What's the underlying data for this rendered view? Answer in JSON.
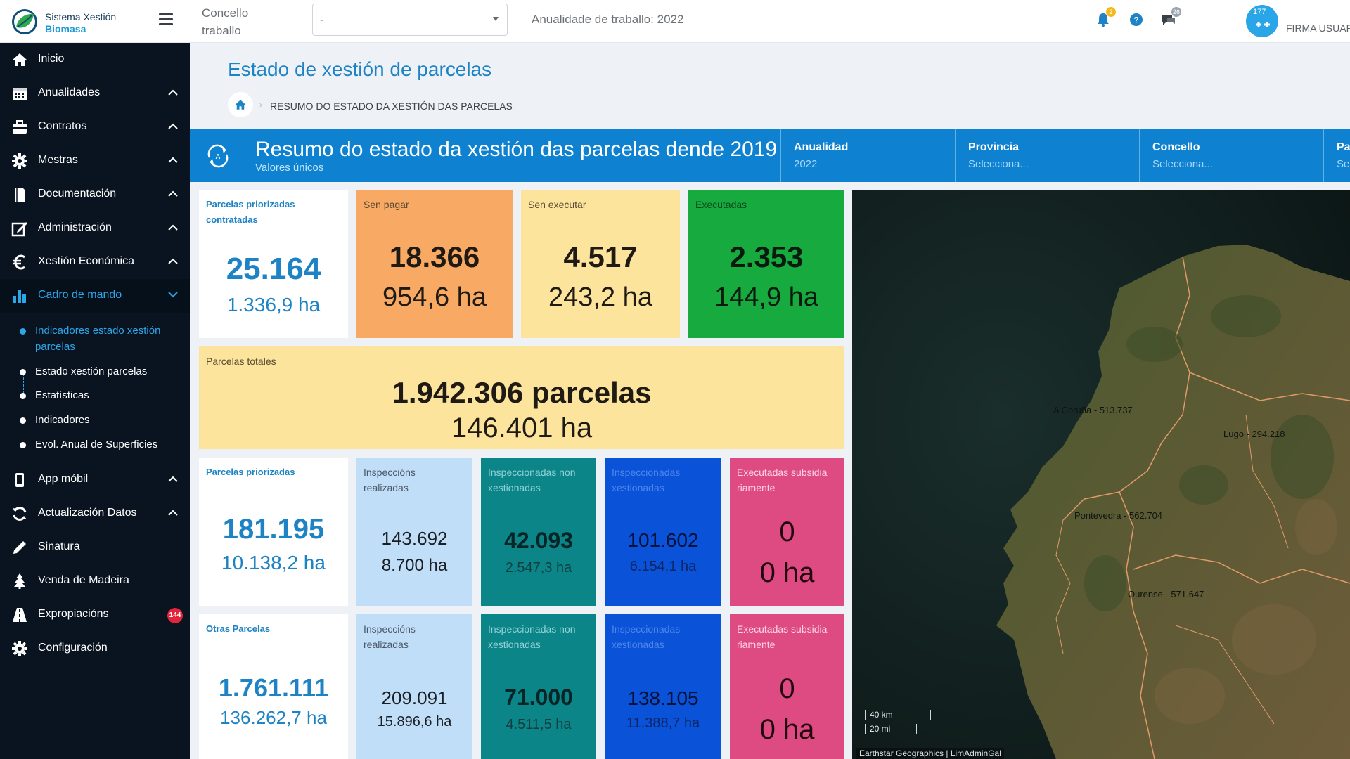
{
  "header": {
    "brand_name": "Sistema Xestión",
    "brand_sub": "Biomasa",
    "concello_label": "Concello traballo",
    "concello_value": "-",
    "anualidade_label": "Anualidade de traballo: 2022",
    "notifications_count": "2",
    "messages_count": "26",
    "avatar_count": "177",
    "user_name": "FIRMA USUAR"
  },
  "sidebar": {
    "items": [
      {
        "label": "Inicio",
        "icon": "home-icon"
      },
      {
        "label": "Anualidades",
        "icon": "calendar-icon"
      },
      {
        "label": "Contratos",
        "icon": "briefcase-icon"
      },
      {
        "label": "Mestras",
        "icon": "gear-icon"
      },
      {
        "label": "Documentación",
        "icon": "document-icon"
      },
      {
        "label": "Administración",
        "icon": "edit-icon"
      },
      {
        "label": "Xestión Económica",
        "icon": "euro-icon"
      },
      {
        "label": "Cadro de mando",
        "icon": "bar-chart-icon"
      },
      {
        "label": "App móbil",
        "icon": "mobile-icon"
      },
      {
        "label": "Actualización Datos",
        "icon": "refresh-icon"
      },
      {
        "label": "Sinatura",
        "icon": "pen-icon"
      },
      {
        "label": "Venda de Madeira",
        "icon": "tree-icon"
      },
      {
        "label": "Expropiacións",
        "icon": "road-icon",
        "badge": "144"
      },
      {
        "label": "Configuración",
        "icon": "gear-icon"
      }
    ],
    "subitems": [
      "Indicadores estado xestión parcelas",
      "Estado xestión parcelas",
      "Estatísticas",
      "Indicadores",
      "Evol. Anual de Superficies"
    ]
  },
  "page": {
    "title": "Estado de xestión de parcelas",
    "breadcrumb": "RESUMO DO ESTADO DA XESTIÓN DAS PARCELAS"
  },
  "banner": {
    "title": "Resumo do estado da xestión das parcelas dende 2019",
    "subtitle": "Valores únicos",
    "filters": [
      {
        "label": "Anualidad",
        "value": "2022"
      },
      {
        "label": "Provincia",
        "value": "Selecciona..."
      },
      {
        "label": "Concello",
        "value": "Selecciona..."
      },
      {
        "label": "Par",
        "value": "Sel"
      }
    ]
  },
  "tiles": {
    "contratadas": {
      "label": "Parcelas priorizadas contratadas",
      "num": "25.164",
      "ha": "1.336,9 ha"
    },
    "sen_pagar": {
      "label": "Sen pagar",
      "num": "18.366",
      "ha": "954,6 ha"
    },
    "sen_executar": {
      "label": "Sen executar",
      "num": "4.517",
      "ha": "243,2 ha"
    },
    "executadas": {
      "label": "Executadas",
      "num": "2.353",
      "ha": "144,9 ha"
    },
    "totales": {
      "label": "Parcelas totales",
      "num": "1.942.306 parcelas",
      "ha": "146.401 ha"
    },
    "priorizadas": {
      "label": "Parcelas priorizadas",
      "num": "181.195",
      "ha": "10.138,2 ha",
      "insp": {
        "label": "Inspeccións realizadas",
        "num": "143.692",
        "ha": "8.700 ha"
      },
      "non_xest": {
        "label": "Inspeccionadas non xestionadas",
        "num": "42.093",
        "ha": "2.547,3 ha"
      },
      "xest": {
        "label": "Inspeccionadas xestionadas",
        "num": "101.602",
        "ha": "6.154,1 ha"
      },
      "subsid": {
        "label": "Executadas subsidia riamente",
        "num": "0",
        "ha": "0 ha"
      }
    },
    "otras": {
      "label": "Otras Parcelas",
      "num": "1.761.111",
      "ha": "136.262,7 ha",
      "insp": {
        "label": "Inspeccións realizadas",
        "num": "209.091",
        "ha": "15.896,6 ha"
      },
      "non_xest": {
        "label": "Inspeccionadas non xestionadas",
        "num": "71.000",
        "ha": "4.511,5 ha"
      },
      "xest": {
        "label": "Inspeccionadas xestionadas",
        "num": "138.105",
        "ha": "11.388,7 ha"
      },
      "subsid": {
        "label": "Executadas subsidia riamente",
        "num": "0",
        "ha": "0 ha"
      }
    }
  },
  "map": {
    "labels": [
      {
        "text": "A Coruña - 513.737"
      },
      {
        "text": "Lugo - 294.218"
      },
      {
        "text": "Pontevedra - 562.704"
      },
      {
        "text": "Ourense - 571.647"
      }
    ],
    "scale_km": "40 km",
    "scale_mi": "20 mi",
    "attribution": "Earthstar Geographics | LimAdminGal"
  },
  "colors": {
    "accent": "#1d83c4",
    "banner": "#0e82d0",
    "sidebar": "#0a1320",
    "orange": "#f8a963",
    "yellow": "#fce49c",
    "green": "#17ab3f",
    "light_blue": "#c1def8",
    "teal": "#0c8588",
    "blue": "#0a52d8",
    "pink": "#dd4b82"
  }
}
